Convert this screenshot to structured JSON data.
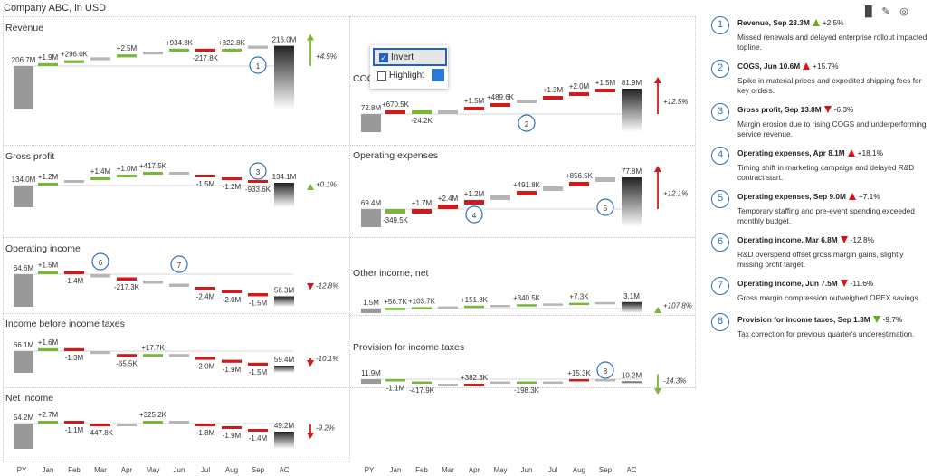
{
  "header": {
    "company": "Company ABC, in USD"
  },
  "toolbar": [
    {
      "icon": "chart-icon",
      "glyph": "▐▌"
    },
    {
      "icon": "pen-icon",
      "glyph": "✎"
    },
    {
      "icon": "eye-icon",
      "glyph": "◎"
    }
  ],
  "popup": {
    "invert_label": "Invert",
    "invert_checked": true,
    "highlight_label": "Highlight",
    "highlight_checked": false,
    "highlight_color": "#2d7ad6"
  },
  "colors": {
    "positive": "#7ab737",
    "negative": "#d11a1a",
    "base": "#999999",
    "neutral": "#b5b5b5",
    "badge": "#2f6fba"
  },
  "months": [
    "PY",
    "Jan",
    "Feb",
    "Mar",
    "Apr",
    "May",
    "Jun",
    "Jul",
    "Aug",
    "Sep",
    "AC"
  ],
  "chart_data": [
    {
      "type": "waterfall",
      "title": "Revenue",
      "start": "206.7M",
      "steps": [
        "+1.9M",
        "+296.0K",
        "",
        "+2.5M",
        "",
        "+934.8K",
        "-217.8K",
        "+822.8K",
        ""
      ],
      "dirs": [
        1,
        1,
        1,
        1,
        1,
        1,
        -1,
        1,
        1
      ],
      "end": "216.0M",
      "delta": "+4.5%",
      "delta_good": true,
      "badges": [
        {
          "n": "1",
          "at": 9
        }
      ]
    },
    {
      "type": "waterfall",
      "title": "COGS",
      "start": "72.8M",
      "steps": [
        "+670.5K",
        "-24.2K",
        "",
        "+1.5M",
        "+489.6K",
        "",
        "+1.3M",
        "+2.0M",
        "+1.5M"
      ],
      "dirs": [
        1,
        -1,
        1,
        1,
        1,
        1,
        1,
        1,
        1
      ],
      "end": "81.9M",
      "delta": "+12.5%",
      "delta_good": false,
      "badges": [
        {
          "n": "2",
          "at": 6
        }
      ]
    },
    {
      "type": "waterfall",
      "title": "Gross profit",
      "start": "134.0M",
      "steps": [
        "+1.2M",
        "",
        "+1.4M",
        "+1.0M",
        "+417.5K",
        "",
        "-1.5M",
        "-1.2M",
        "-933.6K"
      ],
      "dirs": [
        1,
        1,
        1,
        1,
        1,
        -1,
        -1,
        -1,
        -1
      ],
      "end": "134.1M",
      "delta": "+0.1%",
      "delta_good": true,
      "badges": [
        {
          "n": "3",
          "at": 9
        }
      ]
    },
    {
      "type": "waterfall",
      "title": "Operating expenses",
      "start": "69.4M",
      "steps": [
        "-349.5K",
        "+1.7M",
        "+2.4M",
        "+1.2M",
        "",
        "+491.8K",
        "",
        "+856.5K",
        ""
      ],
      "dirs": [
        -1,
        1,
        1,
        1,
        1,
        1,
        1,
        1,
        1
      ],
      "end": "77.8M",
      "delta": "+12.1%",
      "delta_good": false,
      "badges": [
        {
          "n": "4",
          "at": 4
        },
        {
          "n": "5",
          "at": 9
        }
      ]
    },
    {
      "type": "waterfall",
      "title": "Operating income",
      "start": "64.6M",
      "steps": [
        "+1.5M",
        "-1.4M",
        "",
        "-217.3K",
        "",
        "",
        "-2.4M",
        "-2.0M",
        "-1.5M"
      ],
      "dirs": [
        1,
        -1,
        -1,
        -1,
        -1,
        -1,
        -1,
        -1,
        -1
      ],
      "end": "56.3M",
      "delta": "-12.8%",
      "delta_good": false,
      "badges": [
        {
          "n": "6",
          "at": 3
        },
        {
          "n": "7",
          "at": 6
        }
      ]
    },
    {
      "type": "waterfall",
      "title": "Other income, net",
      "start": "1.5M",
      "steps": [
        "+56.7K",
        "+103.7K",
        "",
        "+151.8K",
        "",
        "+340.5K",
        "",
        "+7.3K",
        ""
      ],
      "dirs": [
        1,
        1,
        1,
        1,
        1,
        1,
        1,
        1,
        1
      ],
      "end": "3.1M",
      "delta": "+107.8%",
      "delta_good": true,
      "badges": []
    },
    {
      "type": "waterfall",
      "title": "Income before income taxes",
      "start": "66.1M",
      "steps": [
        "+1.6M",
        "-1.3M",
        "",
        "-65.5K",
        "+17.7K",
        "",
        "-2.0M",
        "-1.9M",
        "-1.5M"
      ],
      "dirs": [
        1,
        -1,
        -1,
        -1,
        1,
        -1,
        -1,
        -1,
        -1
      ],
      "end": "59.4M",
      "delta": "-10.1%",
      "delta_good": false,
      "badges": []
    },
    {
      "type": "waterfall",
      "title": "Provision for income taxes",
      "start": "11.9M",
      "steps": [
        "-1.1M",
        "-417.9K",
        "",
        "+382.3K",
        "",
        "-198.3K",
        "",
        "+15.3K",
        ""
      ],
      "dirs": [
        -1,
        -1,
        -1,
        1,
        1,
        -1,
        1,
        1,
        -1
      ],
      "end": "10.2M",
      "delta": "-14.3%",
      "delta_good": true,
      "badges": [
        {
          "n": "8",
          "at": 9
        }
      ]
    },
    {
      "type": "waterfall",
      "title": "Net income",
      "start": "54.2M",
      "steps": [
        "+2.7M",
        "-1.1M",
        "-447.8K",
        "",
        "+325.2K",
        "",
        "-1.8M",
        "-1.9M",
        "-1.4M"
      ],
      "dirs": [
        1,
        -1,
        -1,
        1,
        1,
        -1,
        -1,
        -1,
        -1
      ],
      "end": "49.2M",
      "delta": "-9.2%",
      "delta_good": false,
      "badges": []
    }
  ],
  "comments": [
    {
      "n": "1",
      "title": "Revenue, Sep 23.3M",
      "dir": "up",
      "good": true,
      "delta": "+2.5%",
      "text": "Missed renewals and delayed enterprise rollout impacted topline."
    },
    {
      "n": "2",
      "title": "COGS, Jun 10.6M",
      "dir": "up",
      "good": false,
      "delta": "+15.7%",
      "text": "Spike in material prices and expedited shipping fees for key orders."
    },
    {
      "n": "3",
      "title": "Gross profit, Sep 13.8M",
      "dir": "down",
      "good": false,
      "delta": "-6.3%",
      "text": "Margin erosion due to rising COGS and underperforming service revenue."
    },
    {
      "n": "4",
      "title": "Operating expenses, Apr 8.1M",
      "dir": "up",
      "good": false,
      "delta": "+18.1%",
      "text": "Timing shift in marketing campaign and delayed R&D contract start."
    },
    {
      "n": "5",
      "title": "Operating expenses, Sep 9.0M",
      "dir": "up",
      "good": false,
      "delta": "+7.1%",
      "text": "Temporary staffing and pre-event spending exceeded monthly budget."
    },
    {
      "n": "6",
      "title": "Operating income, Mar 6.8M",
      "dir": "down",
      "good": false,
      "delta": "-12.8%",
      "text": "R&D overspend offset gross margin gains, slightly missing profit target."
    },
    {
      "n": "7",
      "title": "Operating income, Jun 7.5M",
      "dir": "down",
      "good": false,
      "delta": "-11.6%",
      "text": "Gross margin compression outweighed OPEX savings."
    },
    {
      "n": "8",
      "title": "Provision for income taxes, Sep 1.3M",
      "dir": "down",
      "good": true,
      "delta": "-9.7%",
      "text": "Tax correction for previous quarter's underestimation."
    }
  ]
}
